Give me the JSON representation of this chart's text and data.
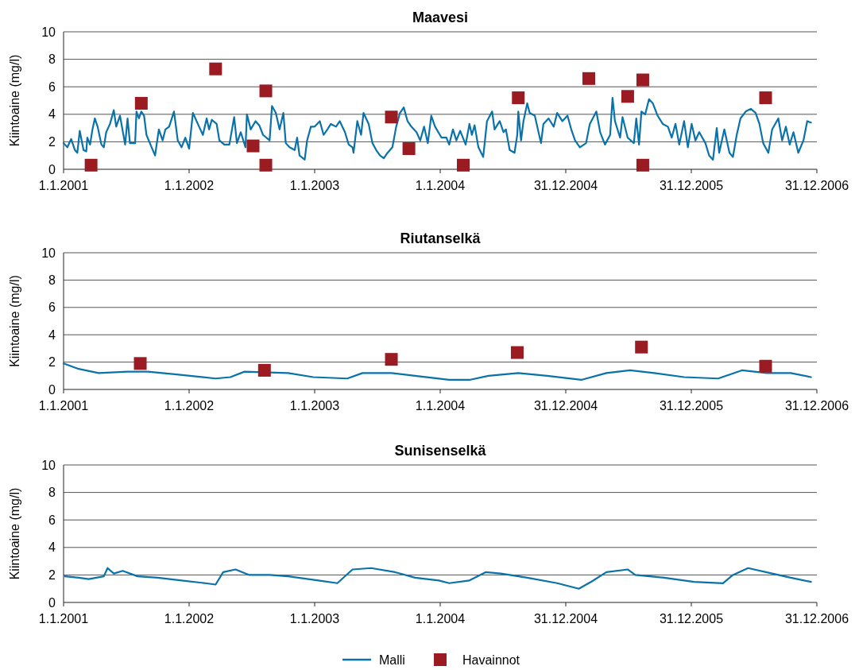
{
  "chart_data": [
    {
      "type": "line",
      "title": "Maavesi",
      "ylabel": "Kiintoaine (mg/l)",
      "xlim": [
        "2001-01-01",
        "2006-12-31"
      ],
      "ylim": [
        0,
        10
      ],
      "yticks": [
        0,
        2,
        4,
        6,
        8,
        10
      ],
      "grid": "y",
      "legend": "bottom",
      "xticks": [
        {
          "value": "2001-01-01",
          "label": "1.1.2001"
        },
        {
          "value": "2002-01-01",
          "label": "1.1.2002"
        },
        {
          "value": "2003-01-01",
          "label": "1.1.2003"
        },
        {
          "value": "2004-01-01",
          "label": "1.1.2004"
        },
        {
          "value": "2004-12-31",
          "label": "31.12.2004"
        },
        {
          "value": "2005-12-31",
          "label": "31.12.2005"
        },
        {
          "value": "2006-12-31",
          "label": "31.12.2006"
        }
      ],
      "series": [
        {
          "name": "Malli",
          "type": "line",
          "color": "#0a72aa",
          "marker": "none",
          "x": [
            "2001-01-01",
            "2001-01-12",
            "2001-01-23",
            "2001-02-03",
            "2001-02-10",
            "2001-02-17",
            "2001-02-28",
            "2001-03-08",
            "2001-03-11",
            "2001-03-19",
            "2001-03-26",
            "2001-04-02",
            "2001-04-10",
            "2001-04-21",
            "2001-04-28",
            "2001-05-05",
            "2001-05-16",
            "2001-05-27",
            "2001-06-03",
            "2001-06-14",
            "2001-06-29",
            "2001-07-06",
            "2001-07-13",
            "2001-07-28",
            "2001-08-01",
            "2001-08-08",
            "2001-08-15",
            "2001-08-23",
            "2001-08-30",
            "2001-09-14",
            "2001-09-24",
            "2001-10-05",
            "2001-10-16",
            "2001-10-24",
            "2001-11-04",
            "2001-11-18",
            "2001-11-29",
            "2001-12-10",
            "2001-12-21",
            "2002-01-01",
            "2002-01-12",
            "2002-01-30",
            "2002-02-10",
            "2002-02-21",
            "2002-02-28",
            "2002-03-08",
            "2002-03-22",
            "2002-03-30",
            "2002-04-13",
            "2002-04-28",
            "2002-05-12",
            "2002-05-20",
            "2002-05-31",
            "2002-06-14",
            "2002-06-18",
            "2002-06-29",
            "2002-07-13",
            "2002-07-24",
            "2002-08-04",
            "2002-08-23",
            "2002-08-30",
            "2002-09-10",
            "2002-09-21",
            "2002-10-02",
            "2002-10-09",
            "2002-10-20",
            "2002-11-04",
            "2002-11-11",
            "2002-11-18",
            "2002-12-03",
            "2002-12-10",
            "2002-12-21",
            "2003-01-01",
            "2003-01-16",
            "2003-01-27",
            "2003-02-07",
            "2003-02-17",
            "2003-03-04",
            "2003-03-15",
            "2003-03-30",
            "2003-04-10",
            "2003-04-21",
            "2003-04-24",
            "2003-05-05",
            "2003-05-16",
            "2003-05-23",
            "2003-06-07",
            "2003-06-18",
            "2003-06-29",
            "2003-07-10",
            "2003-07-21",
            "2003-08-01",
            "2003-08-15",
            "2003-08-26",
            "2003-09-06",
            "2003-09-17",
            "2003-09-28",
            "2003-10-09",
            "2003-10-24",
            "2003-11-04",
            "2003-11-15",
            "2003-11-26",
            "2003-12-06",
            "2003-12-17",
            "2004-01-05",
            "2004-01-19",
            "2004-01-27",
            "2004-02-07",
            "2004-02-17",
            "2004-02-28",
            "2004-03-15",
            "2004-03-26",
            "2004-04-02",
            "2004-04-10",
            "2004-04-21",
            "2004-05-05",
            "2004-05-16",
            "2004-05-31",
            "2004-06-07",
            "2004-06-22",
            "2004-07-03",
            "2004-07-10",
            "2004-07-21",
            "2004-08-04",
            "2004-08-12",
            "2004-08-15",
            "2004-08-23",
            "2004-08-30",
            "2004-09-10",
            "2004-09-17",
            "2004-10-02",
            "2004-10-20",
            "2004-10-27",
            "2004-11-11",
            "2004-11-26",
            "2004-12-06",
            "2004-12-21",
            "2005-01-05",
            "2005-01-16",
            "2005-01-27",
            "2005-02-10",
            "2005-02-28",
            "2005-03-11",
            "2005-03-30",
            "2005-04-10",
            "2005-04-24",
            "2005-05-09",
            "2005-05-16",
            "2005-05-23",
            "2005-06-07",
            "2005-06-14",
            "2005-06-29",
            "2005-07-17",
            "2005-07-24",
            "2005-08-01",
            "2005-08-08",
            "2005-08-19",
            "2005-08-30",
            "2005-09-10",
            "2005-09-24",
            "2005-10-09",
            "2005-10-24",
            "2005-11-04",
            "2005-11-15",
            "2005-11-26",
            "2005-12-10",
            "2005-12-21",
            "2006-01-01",
            "2006-01-12",
            "2006-01-23",
            "2006-02-10",
            "2006-02-21",
            "2006-03-04",
            "2006-03-15",
            "2006-03-22",
            "2006-04-06",
            "2006-04-21",
            "2006-05-01",
            "2006-05-12",
            "2006-05-23",
            "2006-06-07",
            "2006-06-22",
            "2006-07-06",
            "2006-07-17",
            "2006-07-28",
            "2006-08-12",
            "2006-08-23",
            "2006-09-10",
            "2006-09-21",
            "2006-10-02",
            "2006-10-13",
            "2006-10-24",
            "2006-11-07",
            "2006-11-22",
            "2006-12-03",
            "2006-12-14"
          ],
          "values": [
            1.9,
            1.6,
            2.2,
            1.4,
            1.2,
            2.8,
            1.4,
            1.3,
            2.3,
            1.8,
            2.9,
            3.7,
            3.1,
            1.8,
            1.6,
            2.7,
            3.3,
            4.3,
            3.1,
            3.9,
            1.8,
            3.7,
            1.9,
            1.9,
            4.2,
            3.7,
            4.2,
            3.9,
            2.5,
            1.6,
            1.0,
            2.9,
            2.1,
            2.9,
            3.1,
            4.2,
            2.1,
            1.6,
            2.3,
            1.5,
            4.1,
            3.1,
            2.5,
            3.7,
            2.9,
            3.6,
            3.3,
            2.1,
            1.8,
            1.8,
            3.8,
            1.9,
            2.7,
            1.6,
            4.0,
            2.9,
            3.5,
            3.2,
            2.5,
            2.1,
            4.6,
            4.1,
            2.9,
            4.1,
            1.9,
            1.6,
            1.4,
            2.3,
            1.0,
            0.7,
            2.1,
            3.1,
            3.1,
            3.5,
            2.5,
            2.9,
            3.3,
            3.1,
            3.5,
            2.7,
            1.8,
            1.6,
            1.2,
            3.5,
            2.5,
            4.1,
            3.3,
            1.9,
            1.4,
            1.0,
            0.8,
            1.2,
            1.6,
            3.1,
            4.1,
            4.5,
            3.5,
            3.1,
            2.7,
            2.1,
            3.1,
            1.9,
            3.9,
            3.1,
            2.3,
            2.3,
            1.8,
            2.9,
            2.1,
            2.8,
            1.8,
            3.3,
            2.5,
            3.2,
            1.6,
            0.9,
            3.5,
            4.2,
            2.9,
            3.5,
            2.7,
            2.9,
            1.4,
            1.2,
            2.5,
            4.2,
            2.1,
            3.5,
            4.8,
            4.1,
            3.9,
            1.9,
            3.3,
            3.7,
            3.1,
            4.1,
            3.5,
            3.9,
            2.9,
            2.1,
            1.6,
            1.9,
            3.3,
            4.2,
            2.7,
            1.8,
            2.5,
            5.2,
            3.5,
            2.3,
            3.8,
            2.3,
            1.9,
            3.7,
            1.8,
            4.2,
            4.0,
            5.1,
            4.8,
            3.9,
            3.3,
            3.1,
            2.3,
            3.3,
            1.8,
            3.5,
            1.6,
            3.3,
            2.1,
            2.7,
            1.9,
            1.0,
            0.7,
            3.0,
            1.2,
            2.9,
            1.2,
            0.9,
            2.5,
            3.7,
            4.2,
            4.4,
            4.1,
            3.3,
            1.9,
            1.2,
            2.9,
            3.7,
            2.1,
            3.1,
            1.8,
            2.7,
            1.2,
            2.1,
            3.5,
            3.4
          ]
        },
        {
          "name": "Havainnot",
          "type": "scatter",
          "color": "#9b1b22",
          "marker": "square",
          "x": [
            "2001-03-22",
            "2001-08-15",
            "2002-03-19",
            "2002-07-06",
            "2002-08-12",
            "2002-08-12",
            "2003-08-12",
            "2003-10-02",
            "2004-03-08",
            "2004-08-15",
            "2005-03-08",
            "2005-06-29",
            "2005-08-12",
            "2005-08-12",
            "2006-08-04"
          ],
          "values": [
            0.3,
            4.8,
            7.3,
            1.7,
            5.7,
            0.3,
            3.8,
            1.5,
            0.3,
            5.2,
            6.6,
            5.3,
            6.5,
            0.3,
            5.2
          ]
        }
      ]
    },
    {
      "type": "line",
      "title": "Riutanselkä",
      "ylabel": "Kiintoaine (mg/l)",
      "xlim": [
        "2001-01-01",
        "2006-12-31"
      ],
      "ylim": [
        0,
        10
      ],
      "yticks": [
        0,
        2,
        4,
        6,
        8,
        10
      ],
      "grid": "y",
      "xticks": [
        {
          "value": "2001-01-01",
          "label": "1.1.2001"
        },
        {
          "value": "2002-01-01",
          "label": "1.1.2002"
        },
        {
          "value": "2003-01-01",
          "label": "1.1.2003"
        },
        {
          "value": "2004-01-01",
          "label": "1.1.2004"
        },
        {
          "value": "2004-12-31",
          "label": "31.12.2004"
        },
        {
          "value": "2005-12-31",
          "label": "31.12.2005"
        },
        {
          "value": "2006-12-31",
          "label": "31.12.2006"
        }
      ],
      "series": [
        {
          "type": "line",
          "color": "#0a72aa",
          "marker": "none",
          "x": [
            "2001-01-01",
            "2001-02-14",
            "2001-04-13",
            "2001-07-06",
            "2001-09-03",
            "2001-11-26",
            "2002-03-19",
            "2002-05-01",
            "2002-06-11",
            "2002-08-08",
            "2002-10-16",
            "2002-12-28",
            "2003-04-06",
            "2003-05-20",
            "2003-08-12",
            "2003-10-20",
            "2004-01-27",
            "2004-03-26",
            "2004-05-20",
            "2004-08-15",
            "2004-11-07",
            "2005-02-14",
            "2005-04-28",
            "2005-07-06",
            "2005-09-14",
            "2005-12-10",
            "2006-03-19",
            "2006-05-27",
            "2006-08-08",
            "2006-10-16",
            "2006-12-14"
          ],
          "values": [
            1.9,
            1.5,
            1.2,
            1.3,
            1.3,
            1.1,
            0.8,
            0.9,
            1.3,
            null,
            1.2,
            0.9,
            0.8,
            1.2,
            1.2,
            1.0,
            0.7,
            0.7,
            1.0,
            1.2,
            1.0,
            0.7,
            1.2,
            1.4,
            1.2,
            0.9,
            0.8,
            1.4,
            1.2,
            1.2,
            0.9
          ]
        },
        {
          "type": "scatter",
          "color": "#9b1b22",
          "marker": "square",
          "x": [
            "2001-08-12",
            "2002-08-08",
            "2003-08-12",
            "2004-08-12",
            "2005-08-08",
            "2006-08-04"
          ],
          "values": [
            1.9,
            1.4,
            2.2,
            2.7,
            3.1,
            1.7
          ]
        }
      ]
    },
    {
      "type": "line",
      "title": "Sunisenselkä",
      "ylabel": "Kiintoaine (mg/l)",
      "xlim": [
        "2001-01-01",
        "2006-12-31"
      ],
      "ylim": [
        0,
        10
      ],
      "yticks": [
        0,
        2,
        4,
        6,
        8,
        10
      ],
      "grid": "y",
      "xticks": [
        {
          "value": "2001-01-01",
          "label": "1.1.2001"
        },
        {
          "value": "2002-01-01",
          "label": "1.1.2002"
        },
        {
          "value": "2003-01-01",
          "label": "1.1.2003"
        },
        {
          "value": "2004-01-01",
          "label": "1.1.2004"
        },
        {
          "value": "2004-12-31",
          "label": "31.12.2004"
        },
        {
          "value": "2005-12-31",
          "label": "31.12.2005"
        },
        {
          "value": "2006-12-31",
          "label": "31.12.2006"
        }
      ],
      "series": [
        {
          "type": "line",
          "color": "#0a72aa",
          "marker": "none",
          "x": [
            "2001-01-05",
            "2001-02-14",
            "2001-03-15",
            "2001-04-28",
            "2001-05-09",
            "2001-05-27",
            "2001-06-22",
            "2001-08-04",
            "2001-10-02",
            "2001-12-10",
            "2002-02-17",
            "2002-03-19",
            "2002-04-10",
            "2002-05-16",
            "2002-06-25",
            "2002-08-23",
            "2002-10-16",
            "2003-01-12",
            "2003-03-08",
            "2003-04-21",
            "2003-06-14",
            "2003-08-23",
            "2003-10-20",
            "2003-12-28",
            "2004-01-27",
            "2004-03-26",
            "2004-05-12",
            "2004-06-25",
            "2004-09-10",
            "2004-12-06",
            "2005-02-07",
            "2005-03-15",
            "2005-04-28",
            "2005-06-29",
            "2005-07-21",
            "2005-10-13",
            "2006-01-08",
            "2006-04-02",
            "2006-05-01",
            "2006-06-14",
            "2006-08-23",
            "2006-10-16",
            "2006-12-14"
          ],
          "values": [
            1.9,
            1.8,
            1.7,
            1.9,
            2.5,
            2.1,
            2.3,
            1.9,
            1.8,
            1.6,
            1.4,
            1.3,
            2.2,
            2.4,
            2.0,
            2.0,
            1.9,
            1.6,
            1.4,
            2.4,
            2.5,
            2.2,
            1.8,
            1.6,
            1.4,
            1.6,
            2.2,
            2.1,
            1.8,
            1.4,
            1.0,
            1.5,
            2.2,
            2.4,
            2.0,
            1.8,
            1.5,
            1.4,
            2.0,
            2.5,
            2.1,
            1.8,
            1.5
          ]
        }
      ]
    }
  ]
}
